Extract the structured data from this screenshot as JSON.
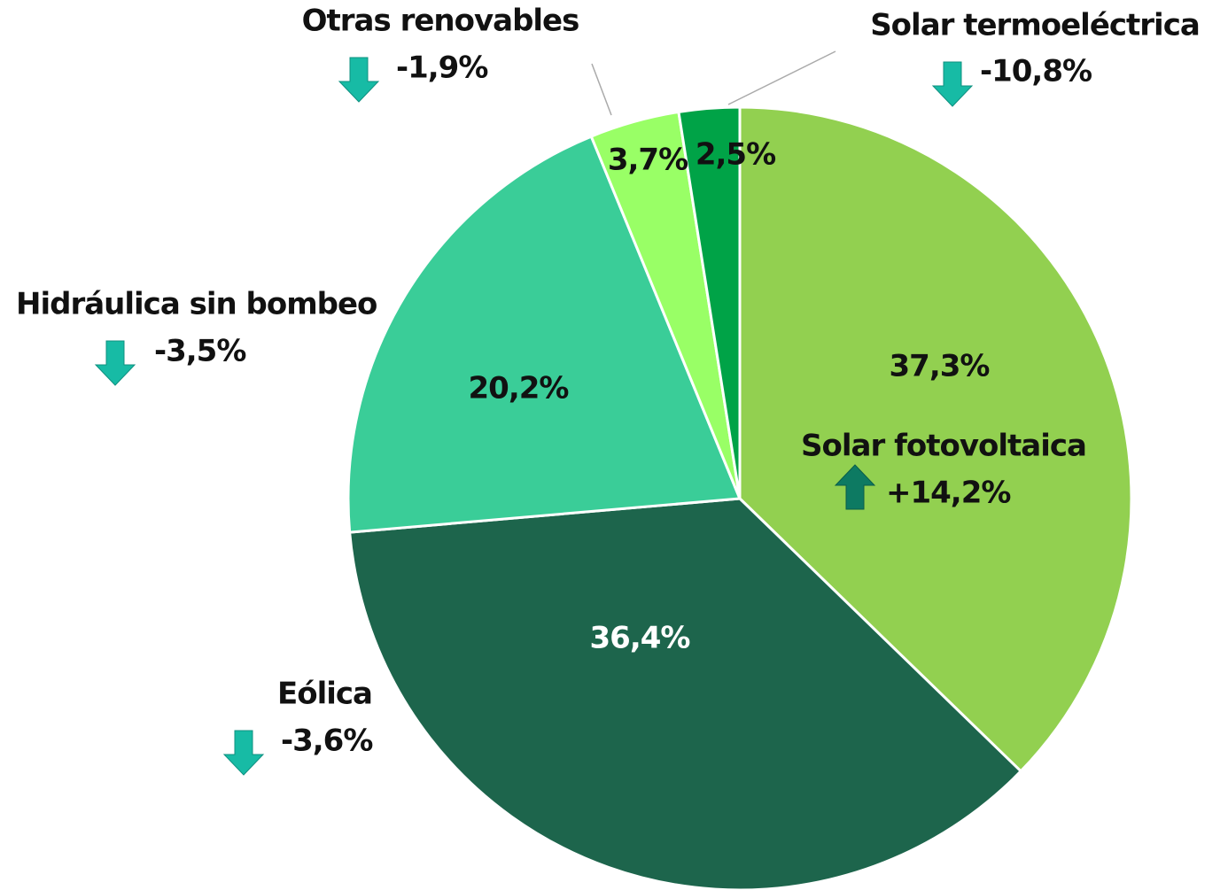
{
  "chart_data": {
    "type": "pie",
    "categories": [
      "Solar fotovoltaica",
      "Eólica",
      "Hidráulica sin bombeo",
      "Otras renovables",
      "Solar termoeléctrica"
    ],
    "values": [
      37.3,
      36.4,
      20.2,
      3.7,
      2.5
    ],
    "value_labels": [
      "37,3%",
      "36,4%",
      "20,2%",
      "3,7%",
      "2,5%"
    ],
    "colors": [
      "#92d050",
      "#1d654c",
      "#3acd98",
      "#99ff66",
      "#00a347"
    ],
    "changes": [
      14.2,
      -3.6,
      -3.5,
      -1.9,
      -10.8
    ],
    "change_labels": [
      "+14,2%",
      "-3,6%",
      "-3,5%",
      "-1,9%",
      "-10,8%"
    ]
  }
}
